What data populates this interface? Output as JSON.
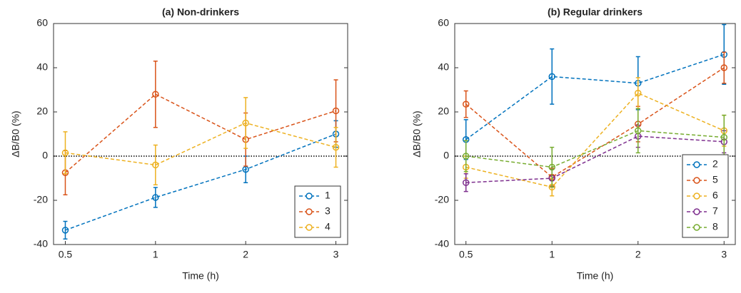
{
  "chart_data": [
    {
      "type": "line",
      "title": "(a) Non-drinkers",
      "x_label": "Time (h)",
      "y_label": "ΔB/B0 (%)",
      "categories": [
        "0.5",
        "1",
        "2",
        "3"
      ],
      "ylim": [
        -40,
        60
      ],
      "yticks": [
        -40,
        -20,
        0,
        20,
        40,
        60
      ],
      "zero_line": 0,
      "legend": "lower right",
      "series": [
        {
          "name": "1",
          "color": "#0072BD",
          "values": [
            -33.5,
            -18.7,
            -6,
            10
          ],
          "errors": [
            4,
            4.5,
            6,
            6
          ]
        },
        {
          "name": "3",
          "color": "#D95319",
          "values": [
            -7.5,
            28,
            7.5,
            20.5
          ],
          "errors": [
            10,
            15,
            12,
            14
          ]
        },
        {
          "name": "4",
          "color": "#EDB120",
          "values": [
            1.5,
            -4,
            15,
            4
          ],
          "errors": [
            9.5,
            9,
            11.5,
            9
          ]
        }
      ]
    },
    {
      "type": "line",
      "title": "(b) Regular drinkers",
      "x_label": "Time (h)",
      "y_label": "ΔB/B0 (%)",
      "categories": [
        "0.5",
        "1",
        "2",
        "3"
      ],
      "ylim": [
        -40,
        60
      ],
      "yticks": [
        -40,
        -20,
        0,
        20,
        40,
        60
      ],
      "zero_line": 0,
      "legend": "lower right",
      "series": [
        {
          "name": "2",
          "color": "#0072BD",
          "values": [
            7.5,
            36,
            33,
            46
          ],
          "errors": [
            9,
            12.5,
            12,
            13.5
          ]
        },
        {
          "name": "5",
          "color": "#D95319",
          "values": [
            23.5,
            -9.5,
            14.5,
            40
          ],
          "errors": [
            6,
            4,
            8,
            7
          ]
        },
        {
          "name": "6",
          "color": "#EDB120",
          "values": [
            -5,
            -14,
            28.5,
            11.5
          ],
          "errors": [
            5,
            4,
            7,
            7
          ]
        },
        {
          "name": "7",
          "color": "#7E2F8E",
          "values": [
            -12,
            -10,
            9,
            6.5
          ],
          "errors": [
            4,
            4,
            5,
            5
          ]
        },
        {
          "name": "8",
          "color": "#77AC30",
          "values": [
            0,
            -5,
            11.5,
            8.5
          ],
          "errors": [
            7,
            9,
            10,
            10
          ]
        }
      ]
    }
  ]
}
